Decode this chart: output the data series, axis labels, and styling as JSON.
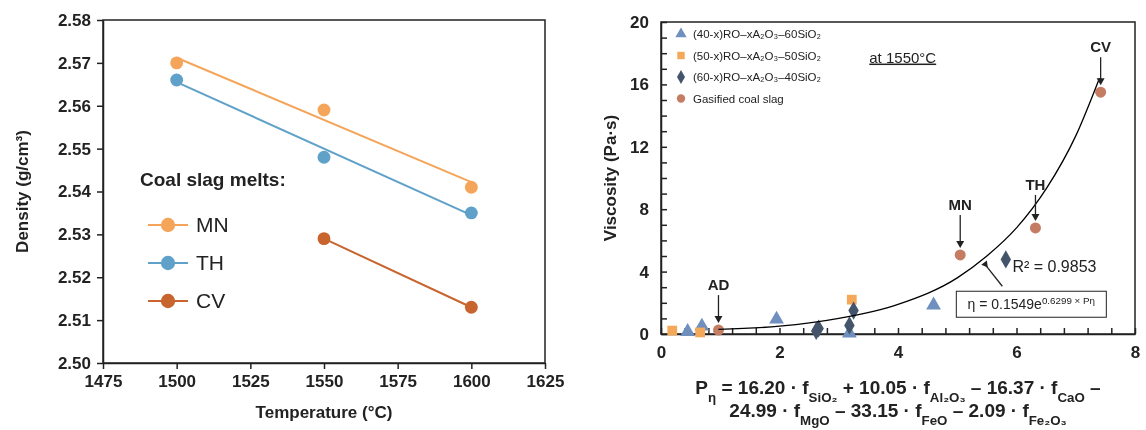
{
  "chart_data": [
    {
      "type": "scatter",
      "xlabel": "Temperature (°C)",
      "ylabel": "Density (g/cm³)",
      "legend_title": "Coal slag melts:",
      "legend": "left",
      "x": [
        1500,
        1550,
        1600
      ],
      "xlim": [
        1475,
        1625
      ],
      "xticks": [
        1475,
        1500,
        1525,
        1550,
        1575,
        1600,
        1625
      ],
      "ylim": [
        2.5,
        2.58
      ],
      "yticks": [
        {
          "value": 2.5,
          "label": "2.50"
        },
        2.51,
        2.52,
        2.53,
        2.54,
        2.55,
        2.56,
        2.57,
        2.58
      ],
      "series": [
        {
          "name": "MN",
          "color": "#f4a55a",
          "marker": "circle",
          "values": [
            2.57,
            2.559,
            2.541
          ]
        },
        {
          "name": "TH",
          "color": "#5fa1c8",
          "marker": "circle",
          "values": [
            2.566,
            2.548,
            2.535
          ]
        },
        {
          "name": "CV",
          "color": "#c8642e",
          "marker": "circle",
          "values": [
            null,
            2.529,
            2.513
          ]
        },
        {
          "type": "line",
          "color": "#f4a55a",
          "x": [
            1500,
            1600
          ],
          "values": [
            2.5712,
            2.5422
          ]
        },
        {
          "type": "line",
          "color": "#5fa1c8",
          "x": [
            1500,
            1600
          ],
          "values": [
            2.5655,
            2.5345
          ]
        },
        {
          "type": "line",
          "color": "#c8642e",
          "x": [
            1550,
            1600
          ],
          "values": [
            2.529,
            2.513
          ]
        }
      ]
    },
    {
      "type": "scatter",
      "xlabel": "P$_{η}$ = 16.20 · f$_{SiO₂}$ + 10.05 · f$_{Al₂O₃}$ – 16.37 · f$_{CaO}$ –\n24.99 · f$_{MgO}$ – 33.15 · f$_{FeO}$  – 2.09 · f$_{Fe₂O₃}$",
      "ylabel": "Viscosity (Pa·s)",
      "legend": "top left",
      "xlim": [
        0,
        8
      ],
      "xticks": [
        0,
        {
          "value": 0.4,
          "label": null
        },
        {
          "value": 0.8,
          "label": null
        },
        {
          "value": 1.2,
          "label": null
        },
        {
          "value": 1.6,
          "label": null
        },
        2,
        {
          "value": 2.4,
          "label": null
        },
        {
          "value": 2.8,
          "label": null
        },
        {
          "value": 3.2,
          "label": null
        },
        {
          "value": 3.6,
          "label": null
        },
        4,
        {
          "value": 4.4,
          "label": null
        },
        {
          "value": 4.8,
          "label": null
        },
        {
          "value": 5.2,
          "label": null
        },
        {
          "value": 5.6,
          "label": null
        },
        6,
        {
          "value": 6.4,
          "label": null
        },
        {
          "value": 6.8,
          "label": null
        },
        {
          "value": 7.2,
          "label": null
        },
        {
          "value": 7.6,
          "label": null
        },
        8
      ],
      "ylim": [
        0,
        20
      ],
      "yticks": [
        0,
        {
          "value": 1,
          "label": null
        },
        {
          "value": 2,
          "label": null
        },
        {
          "value": 3,
          "label": null
        },
        4,
        {
          "value": 5,
          "label": null
        },
        {
          "value": 6,
          "label": null
        },
        {
          "value": 7,
          "label": null
        },
        8,
        {
          "value": 9,
          "label": null
        },
        {
          "value": 10,
          "label": null
        },
        {
          "value": 11,
          "label": null
        },
        12,
        {
          "value": 13,
          "label": null
        },
        {
          "value": 14,
          "label": null
        },
        {
          "value": 15,
          "label": null
        },
        16,
        {
          "value": 17,
          "label": null
        },
        {
          "value": 18,
          "label": null
        },
        {
          "value": 19,
          "label": null
        },
        20
      ],
      "series": [
        {
          "name": "(40-x)RO–xA₂O₃–60SiO₂",
          "color": "#6f8fbf",
          "marker": "triangle",
          "x": [
            0.45,
            0.69,
            1.95,
            3.18,
            4.6
          ],
          "values": [
            0.15,
            0.5,
            0.95,
            0.05,
            1.85
          ]
        },
        {
          "name": "(50-x)RO–xA₂O₃–50SiO₂",
          "color": "#f4a85a",
          "marker": "square",
          "x": [
            0.19,
            0.66,
            3.22
          ],
          "values": [
            0.22,
            0.1,
            2.2
          ]
        },
        {
          "name": "(60-x)RO–xA₂O₃–40SiO₂",
          "color": "#44546a",
          "marker": "diamond",
          "x": [
            2.62,
            2.66,
            3.18,
            3.25,
            5.82
          ],
          "values": [
            0.2,
            0.35,
            0.55,
            1.5,
            4.78
          ]
        },
        {
          "name": "Gasified coal slag",
          "color": "#c47c62",
          "marker": "circle",
          "x": [
            0.97,
            5.05,
            6.32,
            7.42
          ],
          "values": [
            0.25,
            5.07,
            6.8,
            15.5
          ]
        },
        {
          "type": "line",
          "color": "#000000",
          "x": [
            0.97,
            2,
            3,
            4,
            5,
            5.5,
            6,
            6.5,
            7,
            7.4
          ],
          "values": [
            0.3,
            0.5,
            1.0,
            1.9,
            3.6,
            5.0,
            6.8,
            9.3,
            12.7,
            16.4
          ]
        }
      ],
      "annotations": [
        {
          "text": "AD",
          "x": 0.97,
          "y": 0.25
        },
        {
          "text": "MN",
          "x": 5.05,
          "y": 5.07
        },
        {
          "text": "TH",
          "x": 6.32,
          "y": 6.8
        },
        {
          "text": "CV",
          "x": 7.42,
          "y": 15.5
        },
        {
          "text": "η = 0.1549e$^{0.6299 × Pη}$",
          "x": 5.44,
          "y": 4.6
        },
        "at 1550°C",
        "R² = 0.9853"
      ]
    }
  ]
}
